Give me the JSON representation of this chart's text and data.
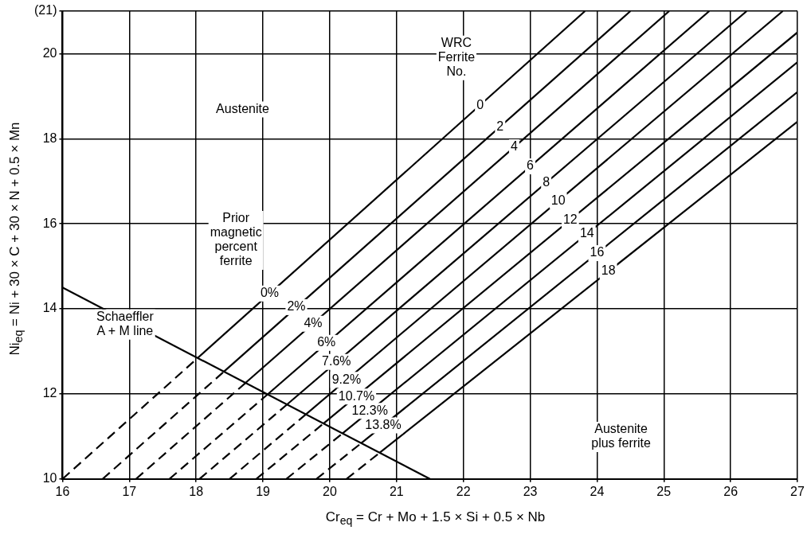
{
  "chart_data": {
    "type": "line",
    "xlabel": "Cr$_{eq}$ = Cr + Mo + 1.5 × Si + 0.5 × Nb",
    "ylabel": "Ni$_{eq}$ = Ni + 30 × C + 30 × N + 0.5 × Mn",
    "xlim": [
      16,
      27
    ],
    "xticks": [
      16,
      17,
      18,
      19,
      20,
      21,
      22,
      23,
      24,
      25,
      26,
      27
    ],
    "ylim": [
      10,
      21
    ],
    "yticks": [
      10,
      12,
      14,
      16,
      18,
      20,
      {
        "value": 21,
        "label": "(21)"
      }
    ],
    "grid": true,
    "legend": false,
    "marker": "none",
    "series": [
      {
        "color": "#000000",
        "line_style": "dashed",
        "x": [
          16,
          18.02
        ],
        "values": [
          10,
          12.84
        ]
      },
      {
        "color": "#000000",
        "line_style": "solid",
        "x": [
          18.02,
          23.82
        ],
        "values": [
          12.84,
          21
        ]
      },
      {
        "color": "#000000",
        "line_style": "dashed",
        "x": [
          16.6,
          18.42
        ],
        "values": [
          10,
          12.53
        ]
      },
      {
        "color": "#000000",
        "line_style": "solid",
        "x": [
          18.42,
          24.5
        ],
        "values": [
          12.53,
          21
        ]
      },
      {
        "color": "#000000",
        "line_style": "dashed",
        "x": [
          17.1,
          18.74
        ],
        "values": [
          10,
          12.26
        ]
      },
      {
        "color": "#000000",
        "line_style": "solid",
        "x": [
          18.74,
          25.08
        ],
        "values": [
          12.26,
          21
        ]
      },
      {
        "color": "#000000",
        "line_style": "dashed",
        "x": [
          17.6,
          19.07
        ],
        "values": [
          10,
          11.99
        ]
      },
      {
        "color": "#000000",
        "line_style": "solid",
        "x": [
          19.07,
          25.68
        ],
        "values": [
          11.99,
          21
        ]
      },
      {
        "color": "#000000",
        "line_style": "dashed",
        "x": [
          18.05,
          19.36
        ],
        "values": [
          10,
          11.75
        ]
      },
      {
        "color": "#000000",
        "line_style": "solid",
        "x": [
          19.36,
          26.24
        ],
        "values": [
          11.75,
          21
        ]
      },
      {
        "color": "#000000",
        "line_style": "dashed",
        "x": [
          18.5,
          19.65
        ],
        "values": [
          10,
          11.53
        ]
      },
      {
        "color": "#000000",
        "line_style": "solid",
        "x": [
          19.65,
          26.78
        ],
        "values": [
          11.53,
          21
        ]
      },
      {
        "color": "#000000",
        "line_style": "dashed",
        "x": [
          18.9,
          19.91
        ],
        "values": [
          10,
          11.31
        ]
      },
      {
        "color": "#000000",
        "line_style": "solid",
        "x": [
          19.91,
          27
        ],
        "values": [
          11.31,
          20.5
        ]
      },
      {
        "color": "#000000",
        "line_style": "dashed",
        "x": [
          19.35,
          20.19
        ],
        "values": [
          10,
          11.07
        ]
      },
      {
        "color": "#000000",
        "line_style": "solid",
        "x": [
          20.19,
          27
        ],
        "values": [
          11.07,
          19.8
        ]
      },
      {
        "color": "#000000",
        "line_style": "dashed",
        "x": [
          19.8,
          20.47
        ],
        "values": [
          10,
          10.84
        ]
      },
      {
        "color": "#000000",
        "line_style": "solid",
        "x": [
          20.47,
          27
        ],
        "values": [
          10.84,
          19.1
        ]
      },
      {
        "color": "#000000",
        "line_style": "dashed",
        "x": [
          20.25,
          20.75
        ],
        "values": [
          10,
          10.62
        ]
      },
      {
        "color": "#000000",
        "line_style": "solid",
        "x": [
          20.75,
          27
        ],
        "values": [
          10.62,
          18.4
        ]
      },
      {
        "color": "#000000",
        "line_style": "solid",
        "x": [
          16,
          21.5
        ],
        "values": [
          14.5,
          10
        ]
      }
    ],
    "annotations": [
      "Austenite",
      "Prior magnetic percent ferrite",
      "WRC Ferrite No.",
      "Schaeffler A + M line",
      "Austenite plus ferrite",
      {
        "text": "0",
        "x": 22.25,
        "y": 18.79
      },
      {
        "text": "2",
        "x": 22.55,
        "y": 18.28
      },
      {
        "text": "4",
        "x": 22.76,
        "y": 17.8
      },
      {
        "text": "6",
        "x": 23.0,
        "y": 17.35
      },
      {
        "text": "8",
        "x": 23.24,
        "y": 16.97
      },
      {
        "text": "10",
        "x": 23.42,
        "y": 16.54
      },
      {
        "text": "12",
        "x": 23.6,
        "y": 16.09
      },
      {
        "text": "14",
        "x": 23.85,
        "y": 15.76
      },
      {
        "text": "16",
        "x": 24.0,
        "y": 15.31
      },
      {
        "text": "18",
        "x": 24.17,
        "y": 14.88
      },
      {
        "text": "0%",
        "x": 19.1,
        "y": 14.36
      },
      {
        "text": "2%",
        "x": 19.5,
        "y": 14.04
      },
      {
        "text": "4%",
        "x": 19.75,
        "y": 13.65
      },
      {
        "text": "6%",
        "x": 19.95,
        "y": 13.2
      },
      {
        "text": "7.6%",
        "x": 20.1,
        "y": 12.75
      },
      {
        "text": "9.2%",
        "x": 20.25,
        "y": 12.33
      },
      {
        "text": "10.7%",
        "x": 20.4,
        "y": 11.94
      },
      {
        "text": "12.3%",
        "x": 20.6,
        "y": 11.6
      },
      {
        "text": "13.8%",
        "x": 20.8,
        "y": 11.26
      }
    ]
  }
}
